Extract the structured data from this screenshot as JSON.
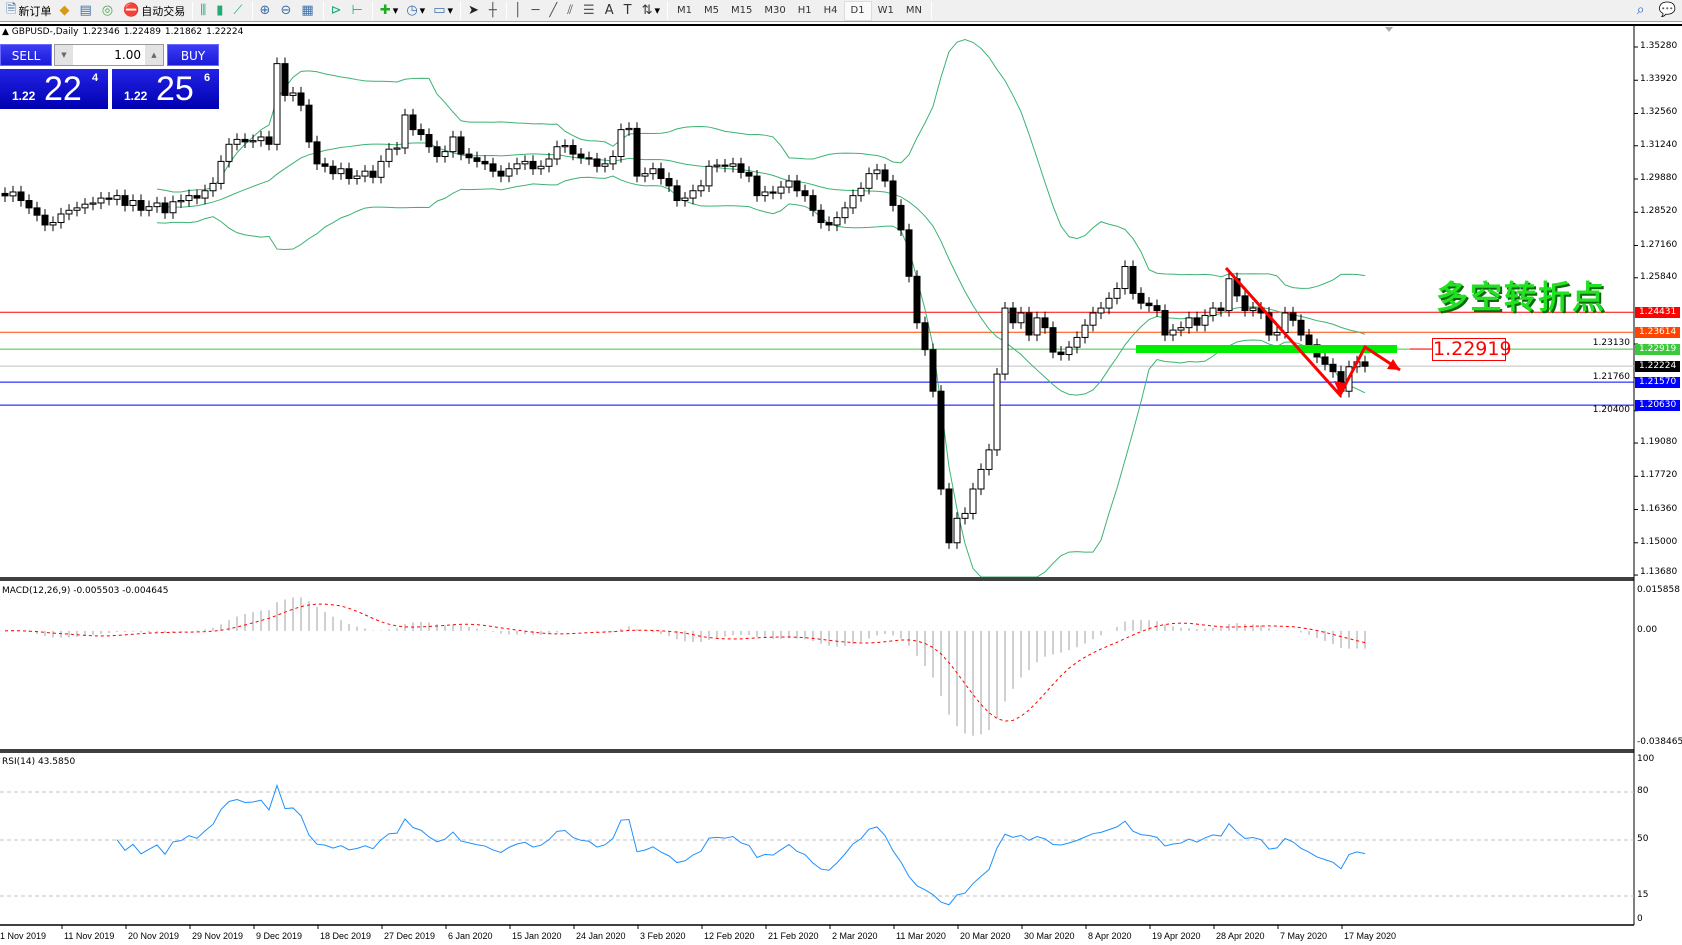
{
  "toolbar": {
    "new_order": "新订单",
    "auto_trading": "自动交易",
    "periods": [
      "M1",
      "M5",
      "M15",
      "M30",
      "H1",
      "H4",
      "D1",
      "W1",
      "MN"
    ],
    "active_period": "D1"
  },
  "chart": {
    "symbol": "GBPUSD-,Daily",
    "open": "1.22346",
    "high": "1.22489",
    "low": "1.21862",
    "close": "1.22224"
  },
  "trade_panel": {
    "sell_label": "SELL",
    "buy_label": "BUY",
    "lot": "1.00",
    "sell_small": "1.22",
    "sell_big": "22",
    "sell_pip": "4",
    "buy_small": "1.22",
    "buy_big": "25",
    "buy_pip": "6"
  },
  "annotation": {
    "text": "多空转折点",
    "price_label": "1.22919"
  },
  "price_axis": [
    "1.35280",
    "1.33920",
    "1.32560",
    "1.31240",
    "1.29880",
    "1.28520",
    "1.27160",
    "1.25840",
    "1.23130",
    "1.21760",
    "1.20400",
    "1.19080",
    "1.17720",
    "1.16360",
    "1.15000",
    "1.13680"
  ],
  "price_tags": [
    {
      "value": "1.24431",
      "color": "#ff0000",
      "line": "#ff0000"
    },
    {
      "value": "1.23614",
      "color": "#ff4500",
      "line": "#ff4500"
    },
    {
      "value": "1.22919",
      "color": "#3cc83c",
      "line": "#3cc83c"
    },
    {
      "value": "1.22224",
      "color": "#000000",
      "line": "#c0c0c0"
    },
    {
      "value": "1.21570",
      "color": "#0000ff",
      "line": "#0000ff"
    },
    {
      "value": "1.20630",
      "color": "#0000ff",
      "line": "#0000ff"
    }
  ],
  "macd": {
    "label": "MACD(12,26,9) -0.005503 -0.004645",
    "axis": [
      "0.015858",
      "0.00",
      "-0.038465"
    ],
    "ylim": [
      -0.038465,
      0.015858
    ]
  },
  "rsi": {
    "label": "RSI(14) 43.5850",
    "axis": [
      "100",
      "80",
      "50",
      "15",
      "0"
    ],
    "levels": [
      80,
      50,
      15
    ]
  },
  "dates": [
    "1 Nov 2019",
    "11 Nov 2019",
    "20 Nov 2019",
    "29 Nov 2019",
    "9 Dec 2019",
    "18 Dec 2019",
    "27 Dec 2019",
    "6 Jan 2020",
    "15 Jan 2020",
    "24 Jan 2020",
    "3 Feb 2020",
    "12 Feb 2020",
    "21 Feb 2020",
    "2 Mar 2020",
    "11 Mar 2020",
    "20 Mar 2020",
    "30 Mar 2020",
    "8 Apr 2020",
    "19 Apr 2020",
    "28 Apr 2020",
    "7 May 2020",
    "17 May 2020"
  ],
  "chart_data": {
    "type": "candlestick",
    "ylim": [
      1.136,
      1.3618
    ],
    "bollinger_color": "#3cb371",
    "macd_signal_color": "#ff0000",
    "rsi_color": "#1e90ff",
    "close": [
      1.2919,
      1.2935,
      1.29,
      1.287,
      1.284,
      1.28,
      1.281,
      1.2845,
      1.286,
      1.287,
      1.2885,
      1.289,
      1.291,
      1.2905,
      1.292,
      1.288,
      1.29,
      1.286,
      1.2875,
      1.289,
      1.285,
      1.2895,
      1.29,
      1.292,
      1.291,
      1.294,
      1.297,
      1.306,
      1.313,
      1.315,
      1.314,
      1.3145,
      1.316,
      1.313,
      1.346,
      1.333,
      1.334,
      1.329,
      1.314,
      1.305,
      1.304,
      1.301,
      1.303,
      1.299,
      1.3,
      1.302,
      1.2995,
      1.306,
      1.311,
      1.3115,
      1.325,
      1.319,
      1.317,
      1.312,
      1.308,
      1.31,
      1.316,
      1.309,
      1.3075,
      1.306,
      1.305,
      1.302,
      1.3,
      1.303,
      1.305,
      1.306,
      1.303,
      1.304,
      1.307,
      1.312,
      1.3125,
      1.309,
      1.3075,
      1.307,
      1.304,
      1.305,
      1.308,
      1.319,
      1.3195,
      1.3,
      1.301,
      1.303,
      1.299,
      1.296,
      1.29,
      1.291,
      1.294,
      1.296,
      1.304,
      1.3045,
      1.304,
      1.305,
      1.3015,
      1.3,
      1.292,
      1.2935,
      1.293,
      1.2955,
      1.298,
      1.294,
      1.292,
      1.286,
      1.281,
      1.28,
      1.283,
      1.287,
      1.292,
      1.295,
      1.301,
      1.3025,
      1.298,
      1.288,
      1.278,
      1.259,
      1.24,
      1.229,
      1.212,
      1.172,
      1.15,
      1.16,
      1.162,
      1.172,
      1.18,
      1.188,
      1.219,
      1.246,
      1.24,
      1.244,
      1.235,
      1.242,
      1.238,
      1.228,
      1.227,
      1.23,
      1.234,
      1.239,
      1.244,
      1.246,
      1.25,
      1.254,
      1.263,
      1.252,
      1.248,
      1.247,
      1.245,
      1.235,
      1.237,
      1.238,
      1.242,
      1.239,
      1.243,
      1.246,
      1.245,
      1.258,
      1.251,
      1.245,
      1.246,
      1.244,
      1.235,
      1.236,
      1.244,
      1.241,
      1.235,
      1.231,
      1.226,
      1.223,
      1.22,
      1.212,
      1.222,
      1.224,
      1.2222
    ]
  }
}
